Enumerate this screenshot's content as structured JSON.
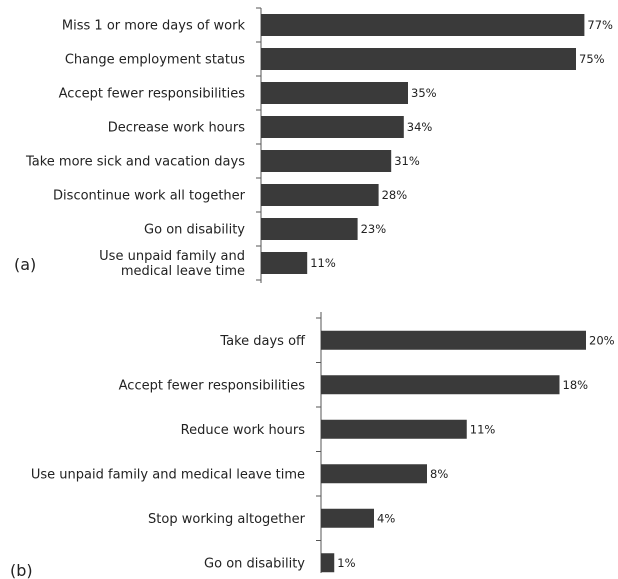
{
  "chart_data": [
    {
      "type": "bar",
      "orientation": "horizontal",
      "panel_label": "(a)",
      "categories": [
        "Miss 1 or more days of work",
        "Change employment status",
        "Accept fewer responsibilities",
        "Decrease work hours",
        "Take more sick and vacation days",
        "Discontinue work all together",
        "Go on disability",
        "Use unpaid family and medical leave time"
      ],
      "category_lines": [
        [
          "Miss 1 or more days of work"
        ],
        [
          "Change employment status"
        ],
        [
          "Accept fewer responsibilities"
        ],
        [
          "Decrease work hours"
        ],
        [
          "Take more sick and vacation days"
        ],
        [
          "Discontinue work all together"
        ],
        [
          "Go on disability"
        ],
        [
          "Use unpaid family and",
          "medical leave time"
        ]
      ],
      "values": [
        77,
        75,
        35,
        34,
        31,
        28,
        23,
        11
      ],
      "value_labels": [
        "77%",
        "75%",
        "35%",
        "34%",
        "31%",
        "28%",
        "23%",
        "11%"
      ],
      "xlim": [
        0,
        100
      ],
      "bar_color": "#3a3a3a",
      "grid": false
    },
    {
      "type": "bar",
      "orientation": "horizontal",
      "panel_label": "(b)",
      "categories": [
        "Take days off",
        "Accept fewer responsibilities",
        "Reduce work hours",
        "Use unpaid family and medical leave time",
        "Stop working altogether",
        "Go on disability"
      ],
      "category_lines": [
        [
          "Take days off"
        ],
        [
          "Accept fewer responsibilities"
        ],
        [
          "Reduce work hours"
        ],
        [
          "Use unpaid family and medical leave time"
        ],
        [
          "Stop working altogether"
        ],
        [
          "Go on disability"
        ]
      ],
      "values": [
        20,
        18,
        11,
        8,
        4,
        1
      ],
      "value_labels": [
        "20%",
        "18%",
        "11%",
        "8%",
        "4%",
        "1%"
      ],
      "xlim": [
        0,
        20
      ],
      "bar_color": "#3a3a3a",
      "grid": false
    }
  ]
}
